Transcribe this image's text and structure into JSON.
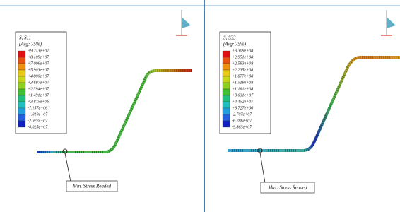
{
  "panels": [
    {
      "legend": {
        "title": "S, S11",
        "subtitle": "(Avg: 75%)",
        "labels": [
          "+9.213e+07",
          "+8.109e+07",
          "+7.006e+07",
          "+5.903e+07",
          "+4.800e+07",
          "+3.697e+07",
          "+2.594e+07",
          "+1.491e+07",
          "+3.875e+06",
          "-7.157e+06",
          "-1.819e+07",
          "-2.922e+07",
          "-4.025e+07"
        ]
      },
      "annotation": "Min. Stress Readed"
    },
    {
      "legend": {
        "title": "S, S33",
        "subtitle": "(Avg: 75%)",
        "labels": [
          "+3.309e+08",
          "+2.951e+08",
          "+2.593e+08",
          "+2.235e+08",
          "+1.877e+08",
          "+1.519e+08",
          "+1.161e+08",
          "+8.031e+07",
          "+4.452e+07",
          "+8.727e+06",
          "-2.707e+07",
          "-6.286e+07",
          "-9.865e+07"
        ]
      },
      "annotation": "Max. Stress Readed"
    }
  ]
}
